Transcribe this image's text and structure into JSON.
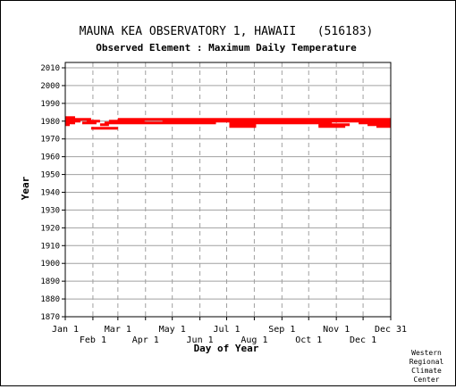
{
  "chart_data": {
    "type": "scatter",
    "title": "MAUNA KEA OBSERVATORY 1, HAWAII   (516183)",
    "subtitle": "Observed Element : Maximum Daily Temperature",
    "xlabel": "Day of Year",
    "ylabel": "Year",
    "xlim": [
      1,
      366
    ],
    "ylim": [
      1870,
      2012
    ],
    "yticks": [
      1870,
      1880,
      1890,
      1900,
      1910,
      1920,
      1930,
      1940,
      1950,
      1960,
      1970,
      1980,
      1990,
      2000,
      2010
    ],
    "xticks_top": [
      {
        "label": "Jan 1",
        "day": 1
      },
      {
        "label": "Mar 1",
        "day": 60
      },
      {
        "label": "May 1",
        "day": 121
      },
      {
        "label": "Jul 1",
        "day": 182
      },
      {
        "label": "Sep 1",
        "day": 244
      },
      {
        "label": "Nov 1",
        "day": 305
      },
      {
        "label": "Dec 31",
        "day": 366
      }
    ],
    "xticks_bottom": [
      {
        "label": "Feb 1",
        "day": 32
      },
      {
        "label": "Apr 1",
        "day": 91
      },
      {
        "label": "Jun 1",
        "day": 152
      },
      {
        "label": "Aug 1",
        "day": 213
      },
      {
        "label": "Oct 1",
        "day": 274
      },
      {
        "label": "Dec 1",
        "day": 335
      }
    ],
    "grid": true,
    "marker_color": "#ff0000",
    "series": [
      {
        "segments": [
          {
            "year": 1982,
            "start": 1,
            "end": 12
          },
          {
            "year": 1981,
            "start": 1,
            "end": 30
          },
          {
            "year": 1981,
            "start": 60,
            "end": 366
          },
          {
            "year": 1980,
            "start": 1,
            "end": 18
          },
          {
            "year": 1980,
            "start": 25,
            "end": 40
          },
          {
            "year": 1980,
            "start": 50,
            "end": 90
          },
          {
            "year": 1980,
            "start": 110,
            "end": 366
          },
          {
            "year": 1979,
            "start": 1,
            "end": 12
          },
          {
            "year": 1979,
            "start": 20,
            "end": 36
          },
          {
            "year": 1979,
            "start": 45,
            "end": 170
          },
          {
            "year": 1979,
            "start": 185,
            "end": 300
          },
          {
            "year": 1979,
            "start": 330,
            "end": 366
          },
          {
            "year": 1978,
            "start": 1,
            "end": 6
          },
          {
            "year": 1978,
            "start": 40,
            "end": 50
          },
          {
            "year": 1978,
            "start": 185,
            "end": 215
          },
          {
            "year": 1978,
            "start": 285,
            "end": 320
          },
          {
            "year": 1978,
            "start": 340,
            "end": 366
          },
          {
            "year": 1977,
            "start": 185,
            "end": 215
          },
          {
            "year": 1977,
            "start": 285,
            "end": 315
          },
          {
            "year": 1977,
            "start": 350,
            "end": 366
          },
          {
            "year": 1976,
            "start": 30,
            "end": 60
          }
        ]
      }
    ]
  },
  "credit": [
    "Western",
    "Regional",
    "Climate",
    "Center"
  ]
}
